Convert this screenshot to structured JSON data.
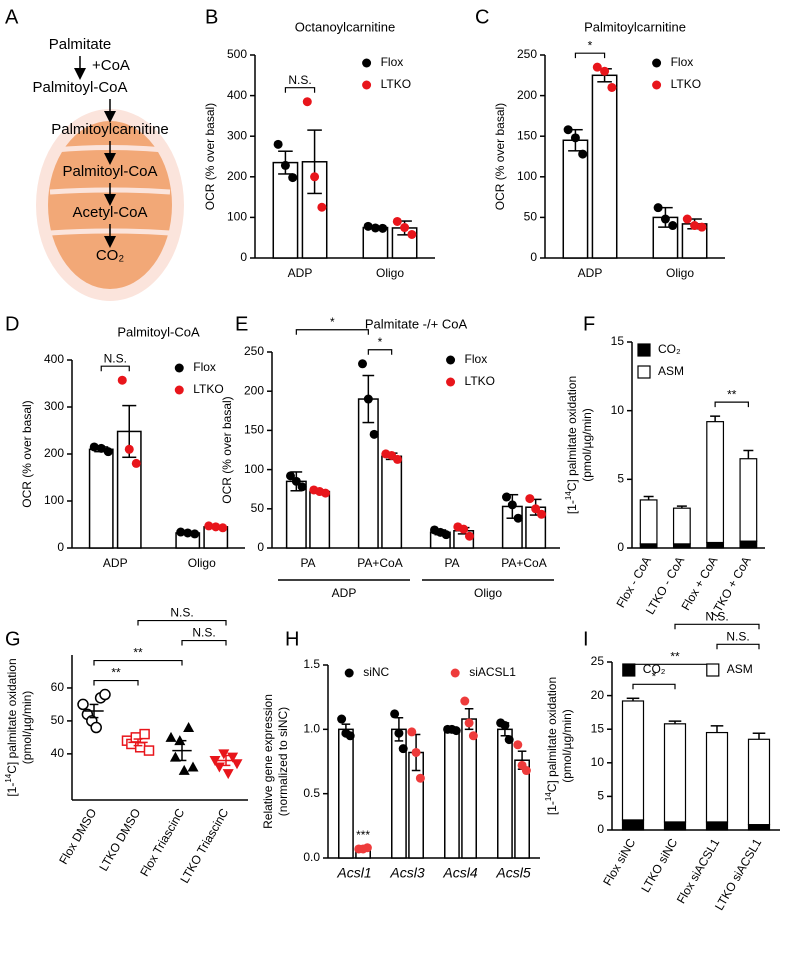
{
  "diagram": {
    "panel": "A",
    "labels": [
      "Palmitate",
      "+CoA",
      "Palmitoyl-CoA",
      "Palmitoylcarnitine",
      "Palmitoyl-CoA",
      "Acetyl-CoA",
      "CO₂"
    ]
  },
  "chart_data": [
    {
      "panel": "B",
      "type": "bar",
      "title": "Octanoylcarnitine",
      "ylabel": [
        [
          {
            "text": "OCR (% over basal)"
          }
        ]
      ],
      "categories": [
        "ADP",
        "Oligo"
      ],
      "ylim": [
        0,
        500
      ],
      "yticks": [
        0,
        100,
        200,
        300,
        400,
        500
      ],
      "legend": "upper right",
      "series": [
        {
          "name": "Flox",
          "color": "#000000",
          "values": [
            235,
            75
          ],
          "errors": [
            28,
            3
          ],
          "points": [
            [
              280,
              228,
              198
            ],
            [
              78,
              74,
              73
            ]
          ]
        },
        {
          "name": "LTKO",
          "color": "#e8151b",
          "values": [
            237,
            74
          ],
          "errors": [
            78,
            17
          ],
          "points": [
            [
              385,
              200,
              125
            ],
            [
              90,
              75,
              58
            ]
          ]
        }
      ],
      "annotations": [
        {
          "text": "N.S.",
          "from": [
            0,
            0
          ],
          "to": [
            0,
            1
          ]
        }
      ]
    },
    {
      "panel": "C",
      "type": "bar",
      "title": "Palmitoylcarnitine",
      "ylabel": [
        [
          {
            "text": "OCR (% over basal)"
          }
        ]
      ],
      "categories": [
        "ADP",
        "Oligo"
      ],
      "ylim": [
        0,
        250
      ],
      "yticks": [
        0,
        50,
        100,
        150,
        200,
        250
      ],
      "legend": "upper right",
      "series": [
        {
          "name": "Flox",
          "color": "#000000",
          "values": [
            145,
            50
          ],
          "errors": [
            13,
            12
          ],
          "points": [
            [
              158,
              148,
              128
            ],
            [
              62,
              48,
              40
            ]
          ]
        },
        {
          "name": "LTKO",
          "color": "#e8151b",
          "values": [
            225,
            42
          ],
          "errors": [
            8,
            6
          ],
          "points": [
            [
              235,
              230,
              210
            ],
            [
              48,
              40,
              38
            ]
          ]
        }
      ],
      "annotations": [
        {
          "text": "*",
          "from": [
            0,
            0
          ],
          "to": [
            0,
            1
          ]
        }
      ]
    },
    {
      "panel": "D",
      "type": "bar",
      "title": "Palmitoyl-CoA",
      "ylabel": [
        [
          {
            "text": "OCR (% over basal)"
          }
        ]
      ],
      "categories": [
        "ADP",
        "Oligo"
      ],
      "ylim": [
        0,
        400
      ],
      "yticks": [
        0,
        100,
        200,
        300,
        400
      ],
      "legend": "upper right",
      "series": [
        {
          "name": "Flox",
          "color": "#000000",
          "values": [
            210,
            32
          ],
          "errors": [
            5,
            2
          ],
          "points": [
            [
              215,
              212,
              205
            ],
            [
              34,
              32,
              30
            ]
          ]
        },
        {
          "name": "LTKO",
          "color": "#e8151b",
          "values": [
            248,
            45
          ],
          "errors": [
            55,
            2
          ],
          "points": [
            [
              357,
              210,
              180
            ],
            [
              47,
              45,
              43
            ]
          ]
        }
      ],
      "annotations": [
        {
          "text": "N.S.",
          "from": [
            0,
            0
          ],
          "to": [
            0,
            1
          ]
        }
      ]
    },
    {
      "panel": "E",
      "type": "bar",
      "title": "Palmitate -/+ CoA",
      "ylabel": [
        [
          {
            "text": "OCR (% over basal)"
          }
        ]
      ],
      "categories": [
        "PA",
        "PA+CoA",
        "PA",
        "PA+CoA"
      ],
      "groups": [
        {
          "label": "ADP",
          "from": 0,
          "to": 1
        },
        {
          "label": "Oligo",
          "from": 2,
          "to": 3
        }
      ],
      "ylim": [
        0,
        250
      ],
      "yticks": [
        0,
        50,
        100,
        150,
        200,
        250
      ],
      "legend": "upper right",
      "series": [
        {
          "name": "Flox",
          "color": "#000000",
          "values": [
            85,
            190,
            20,
            53
          ],
          "errors": [
            12,
            30,
            3,
            15
          ],
          "points": [
            [
              92,
              85,
              78
            ],
            [
              235,
              190,
              145
            ],
            [
              23,
              20,
              17
            ],
            [
              65,
              55,
              38
            ]
          ]
        },
        {
          "name": "LTKO",
          "color": "#e8151b",
          "values": [
            72,
            117,
            22,
            52
          ],
          "errors": [
            2,
            4,
            4,
            10
          ],
          "points": [
            [
              74,
              72,
              70
            ],
            [
              120,
              118,
              113
            ],
            [
              27,
              24,
              15
            ],
            [
              63,
              50,
              43
            ]
          ]
        }
      ],
      "annotations": [
        {
          "text": "*",
          "from": [
            1,
            0
          ],
          "to": [
            1,
            1
          ]
        },
        {
          "text": "*",
          "from": [
            0,
            0
          ],
          "to": [
            1,
            0
          ]
        }
      ]
    },
    {
      "panel": "F",
      "type": "stacked",
      "ylabel": [
        [
          {
            "text": "[1-"
          },
          {
            "text": "14",
            "sup": true
          },
          {
            "text": "C] palmitate oxidation"
          }
        ],
        [
          {
            "text": "(pmol/µg/min)"
          }
        ]
      ],
      "categories": [
        "Flox - CoA",
        "LTKO - CoA",
        "Flox + CoA",
        "LTKO + CoA"
      ],
      "rotate_labels": true,
      "ylim": [
        0,
        15
      ],
      "yticks": [
        0,
        5,
        10,
        15
      ],
      "legend": "upper left",
      "series": [
        {
          "name": "CO₂",
          "color": "#000000",
          "values": [
            0.3,
            0.3,
            0.4,
            0.5
          ]
        },
        {
          "name": "ASM",
          "color": "#ffffff",
          "values": [
            3.2,
            2.6,
            8.8,
            6.0
          ],
          "errors": [
            0.25,
            0.15,
            0.4,
            0.6
          ]
        }
      ],
      "annotations": [
        {
          "text": "**",
          "from": [
            2
          ],
          "to": [
            3
          ]
        }
      ]
    },
    {
      "panel": "G",
      "type": "dot",
      "ylabel": [
        [
          {
            "text": "[1-"
          },
          {
            "text": "14",
            "sup": true
          },
          {
            "text": "C] palmitate oxidation"
          }
        ],
        [
          {
            "text": "(pmol/µg/min)"
          }
        ]
      ],
      "categories": [
        "Flox DMSO",
        "LTKO DMSO",
        "Flox TriascinC",
        "LTKO TriascinC"
      ],
      "rotate_labels": true,
      "ylim": [
        26,
        70
      ],
      "yticks": [
        40,
        50,
        60
      ],
      "groups": [
        {
          "color": "#000000",
          "marker": "open-circle",
          "mean": 53,
          "error": 2,
          "points": [
            55,
            52,
            50,
            48,
            57,
            58
          ]
        },
        {
          "color": "#e8151b",
          "marker": "open-square",
          "mean": 43.5,
          "error": 1,
          "points": [
            44,
            43,
            45,
            42,
            46,
            41
          ]
        },
        {
          "color": "#000000",
          "marker": "triangle",
          "mean": 41,
          "error": 3,
          "points": [
            45,
            39,
            44,
            35,
            48,
            36
          ]
        },
        {
          "color": "#e8151b",
          "marker": "inverted-triangle",
          "mean": 38,
          "error": 1.5,
          "points": [
            38,
            36,
            40,
            34,
            39,
            37
          ]
        }
      ],
      "annotations": [
        {
          "text": "**",
          "from": [
            0
          ],
          "to": [
            1
          ]
        },
        {
          "text": "**",
          "from": [
            0
          ],
          "to": [
            2
          ]
        },
        {
          "text": "N.S.",
          "from": [
            2
          ],
          "to": [
            3
          ]
        },
        {
          "text": "N.S.",
          "from": [
            1
          ],
          "to": [
            3
          ]
        }
      ]
    },
    {
      "panel": "H",
      "type": "bar",
      "ylabel": [
        [
          {
            "text": "Relative gene expression"
          }
        ],
        [
          {
            "text": "(normalized to siNC)"
          }
        ]
      ],
      "categories": [
        "Acsl1",
        "Acsl3",
        "Acsl4",
        "Acsl5"
      ],
      "italic_categories": true,
      "ylim": [
        0,
        1.5
      ],
      "yticks": [
        {
          "value": 0,
          "label": "0.0"
        },
        0.5,
        {
          "value": 1,
          "label": "1.0"
        },
        1.5
      ],
      "legend": "upper center",
      "series": [
        {
          "name": "siNC",
          "color": "#000000",
          "values": [
            1.0,
            1.0,
            1.0,
            1.0
          ],
          "errors": [
            0.04,
            0.09,
            0.01,
            0.05
          ],
          "points": [
            [
              1.08,
              0.97,
              0.95
            ],
            [
              1.12,
              0.97,
              0.85
            ],
            [
              1.0,
              1.0,
              0.99
            ],
            [
              1.05,
              1.03,
              0.92
            ]
          ]
        },
        {
          "name": "siACSL1",
          "color": "#ee3b3b",
          "values": [
            0.07,
            0.82,
            1.08,
            0.76
          ],
          "errors": [
            0.005,
            0.14,
            0.08,
            0.07
          ],
          "points": [
            [
              0.07,
              0.07,
              0.08
            ],
            [
              0.98,
              0.82,
              0.62
            ],
            [
              1.22,
              1.05,
              0.95
            ],
            [
              0.88,
              0.72,
              0.68
            ]
          ]
        }
      ],
      "annotations": [
        {
          "text": "***",
          "from": [
            0,
            1
          ],
          "to": [
            0,
            1
          ]
        }
      ]
    },
    {
      "panel": "I",
      "type": "stacked",
      "ylabel": [
        [
          {
            "text": "[1-"
          },
          {
            "text": "14",
            "sup": true
          },
          {
            "text": "C] palmitate oxidation"
          }
        ],
        [
          {
            "text": "(pmol/µg/min)"
          }
        ]
      ],
      "categories": [
        "Flox siNC",
        "LTKO siNC",
        "Flox siACSL1",
        "LTKO siACSL1"
      ],
      "rotate_labels": true,
      "ylim": [
        0,
        25
      ],
      "yticks": [
        0,
        5,
        10,
        15,
        20,
        25
      ],
      "legend": "upper center",
      "series": [
        {
          "name": "CO₂",
          "color": "#000000",
          "values": [
            1.5,
            1.2,
            1.2,
            0.8
          ]
        },
        {
          "name": "ASM",
          "color": "#ffffff",
          "values": [
            17.7,
            14.6,
            13.3,
            12.7
          ],
          "errors": [
            0.4,
            0.4,
            1.0,
            0.9
          ]
        }
      ],
      "annotations": [
        {
          "text": "*",
          "from": [
            0
          ],
          "to": [
            1
          ]
        },
        {
          "text": "**",
          "from": [
            0
          ],
          "to": [
            2
          ]
        },
        {
          "text": "N.S.",
          "from": [
            2
          ],
          "to": [
            3
          ]
        },
        {
          "text": "N.S.",
          "from": [
            1
          ],
          "to": [
            3
          ]
        }
      ]
    }
  ]
}
